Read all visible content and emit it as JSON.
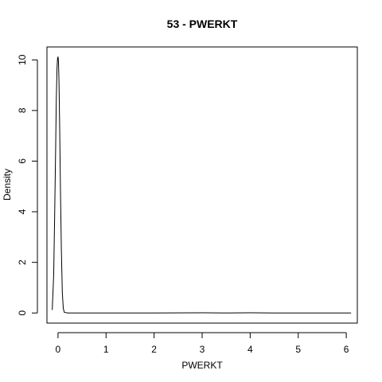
{
  "chart_data": {
    "type": "line",
    "title": "53 - PWERKT",
    "xlabel": "PWERKT",
    "ylabel": "Density",
    "xlim": [
      -0.23,
      6.23
    ],
    "ylim": [
      -0.4,
      10.51
    ],
    "x_ticks": [
      "0",
      "1",
      "2",
      "3",
      "4",
      "5",
      "6"
    ],
    "y_ticks": [
      "0",
      "2",
      "4",
      "6",
      "8",
      "10"
    ],
    "series": [
      {
        "color": "#000000",
        "x": [
          -0.12,
          -0.09,
          -0.07,
          -0.05,
          -0.035,
          -0.02,
          -0.01,
          0.0,
          0.005,
          0.01,
          0.02,
          0.035,
          0.05,
          0.07,
          0.09,
          0.11,
          0.13,
          0.2,
          0.5,
          1.0,
          2.0,
          3.0,
          3.5,
          4.0,
          4.5,
          5.0,
          6.0,
          6.1
        ],
        "y": [
          0.12,
          1.5,
          3.8,
          6.4,
          8.5,
          9.7,
          10.05,
          10.12,
          10.05,
          9.9,
          9.2,
          7.3,
          5.0,
          2.5,
          0.8,
          0.18,
          0.03,
          0.0,
          0.0,
          0.0,
          0.0,
          0.01,
          0.0,
          0.01,
          0.0,
          0.0,
          0.0,
          0.0
        ]
      }
    ],
    "grid": false,
    "legend": "none"
  }
}
